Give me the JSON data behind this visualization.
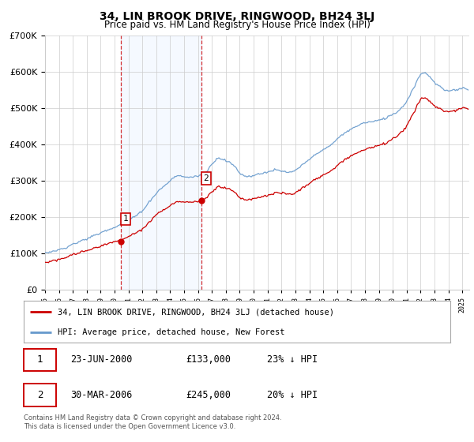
{
  "title": "34, LIN BROOK DRIVE, RINGWOOD, BH24 3LJ",
  "subtitle": "Price paid vs. HM Land Registry's House Price Index (HPI)",
  "legend_label_red": "34, LIN BROOK DRIVE, RINGWOOD, BH24 3LJ (detached house)",
  "legend_label_blue": "HPI: Average price, detached house, New Forest",
  "sale1_date": "23-JUN-2000",
  "sale1_price": "£133,000",
  "sale1_hpi": "23% ↓ HPI",
  "sale1_year": 2000.47,
  "sale1_value": 133000,
  "sale2_date": "30-MAR-2006",
  "sale2_price": "£245,000",
  "sale2_hpi": "20% ↓ HPI",
  "sale2_year": 2006.24,
  "sale2_value": 245000,
  "footer": "Contains HM Land Registry data © Crown copyright and database right 2024.\nThis data is licensed under the Open Government Licence v3.0.",
  "red_color": "#cc0000",
  "blue_color": "#6699cc",
  "shade_color": "#ddeeff",
  "grid_color": "#cccccc",
  "background_color": "#ffffff",
  "ylim": [
    0,
    700000
  ],
  "xlim_start": 1995.0,
  "xlim_end": 2025.5
}
